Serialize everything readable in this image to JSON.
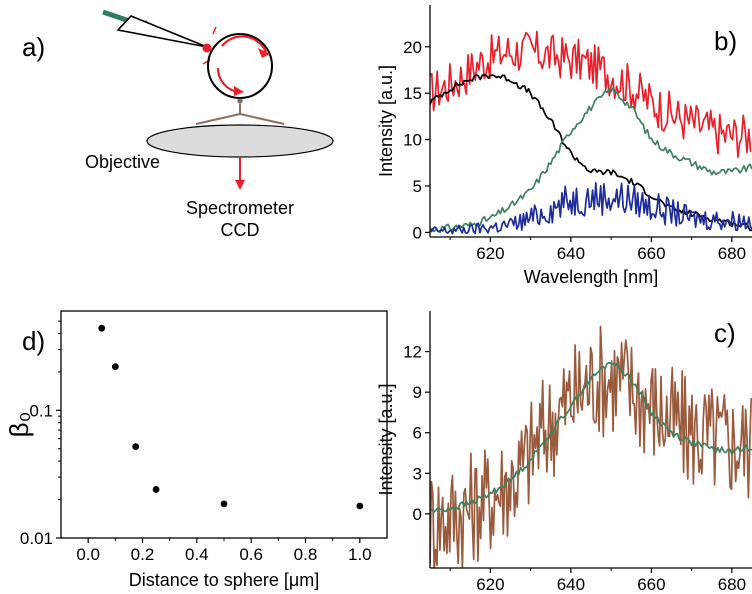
{
  "panel_labels": {
    "a": "a)",
    "b": "b)",
    "c": "c)",
    "d": "d)"
  },
  "schematic": {
    "objective_label": "Objective",
    "detector_line1": "Spectrometer",
    "detector_line2": "CCD",
    "colors": {
      "laser": "#2e7d5e",
      "scatter": "#e8202a",
      "lens": "#dcdcdc",
      "probe": "#8b7060"
    }
  },
  "chart_data": [
    {
      "id": "b",
      "type": "line",
      "xlabel": "Wavelength [nm]",
      "ylabel": "Intensity [a.u.]",
      "xlim": [
        605,
        685
      ],
      "ylim": [
        -0.5,
        24.5
      ],
      "xticks": [
        620,
        640,
        660,
        680
      ],
      "yticks": [
        0,
        5,
        10,
        15,
        20
      ],
      "grid": false,
      "series": [
        {
          "color": "#e8202a",
          "x": [
            605,
            612,
            618,
            624,
            630,
            636,
            642,
            648,
            654,
            660,
            666,
            672,
            678,
            685
          ],
          "values": [
            15,
            16.5,
            18.5,
            19.5,
            19.5,
            19,
            18.5,
            17.5,
            16,
            14,
            12.5,
            11.5,
            10.5,
            10.5
          ]
        },
        {
          "color": "#000000",
          "x": [
            605,
            610,
            615,
            620,
            625,
            630,
            635,
            640,
            645,
            650,
            655,
            660,
            665,
            670,
            675,
            680,
            685
          ],
          "values": [
            14,
            15.5,
            16.5,
            17,
            16.5,
            15,
            12,
            8.5,
            6.5,
            6.5,
            5.5,
            4,
            2.5,
            2,
            1.5,
            1,
            0.5
          ]
        },
        {
          "color": "#3e8060",
          "x": [
            605,
            610,
            615,
            620,
            625,
            630,
            635,
            640,
            645,
            650,
            655,
            660,
            665,
            670,
            675,
            680,
            685
          ],
          "values": [
            0.3,
            0.5,
            0.8,
            1.5,
            2.8,
            4.5,
            7.5,
            11,
            13.5,
            15.5,
            13.5,
            10,
            8.5,
            7.5,
            6.5,
            6.5,
            7
          ]
        },
        {
          "color": "#1f2d9c",
          "x": [
            605,
            615,
            625,
            630,
            635,
            640,
            645,
            650,
            655,
            660,
            670,
            685
          ],
          "values": [
            0.1,
            0.3,
            0.8,
            1.5,
            2.5,
            3.5,
            3.8,
            3.8,
            3.5,
            2.8,
            1.5,
            1.2
          ]
        }
      ]
    },
    {
      "id": "c",
      "type": "line",
      "xlabel": "Wavelength [nm]",
      "ylabel": "Intensity [a.u.]",
      "xlim": [
        605,
        685
      ],
      "ylim": [
        -4,
        15
      ],
      "xticks": [
        620,
        640,
        660,
        680
      ],
      "yticks": [
        0,
        3,
        6,
        9,
        12
      ],
      "grid": false,
      "series": [
        {
          "color": "#9a5a3c",
          "x": [
            605,
            612,
            620,
            627,
            633,
            640,
            646,
            652,
            658,
            664,
            670,
            676,
            685
          ],
          "values": [
            -0.5,
            0,
            1.2,
            3,
            6,
            8.5,
            10,
            10,
            8.5,
            7,
            6,
            5.5,
            5
          ]
        },
        {
          "color": "#3e8060",
          "x": [
            605,
            610,
            615,
            620,
            625,
            630,
            635,
            640,
            645,
            650,
            655,
            660,
            665,
            670,
            675,
            680,
            685
          ],
          "values": [
            0.2,
            0.4,
            0.8,
            1.5,
            2.5,
            4,
            6,
            8,
            10,
            11.3,
            10,
            7.5,
            6,
            5.3,
            4.8,
            4.6,
            5
          ]
        }
      ]
    },
    {
      "id": "d",
      "type": "scatter",
      "xlabel": "Distance to sphere [μm]",
      "ylabel": "β₀",
      "xlim": [
        -0.1,
        1.1
      ],
      "ylim": [
        0.01,
        0.6
      ],
      "yscale": "log",
      "xticks": [
        0.0,
        0.2,
        0.4,
        0.6,
        0.8,
        1.0
      ],
      "xtick_labels": [
        "0.0",
        "0.2",
        "0.4",
        "0.6",
        "0.8",
        "1.0"
      ],
      "yticks": [
        0.01,
        0.1
      ],
      "ytick_labels": [
        "0.01",
        "0.1"
      ],
      "grid": false,
      "series": [
        {
          "color": "#000000",
          "x": [
            0.05,
            0.1,
            0.175,
            0.25,
            0.5,
            1.0
          ],
          "values": [
            0.44,
            0.22,
            0.052,
            0.024,
            0.0185,
            0.0178
          ]
        }
      ]
    }
  ]
}
